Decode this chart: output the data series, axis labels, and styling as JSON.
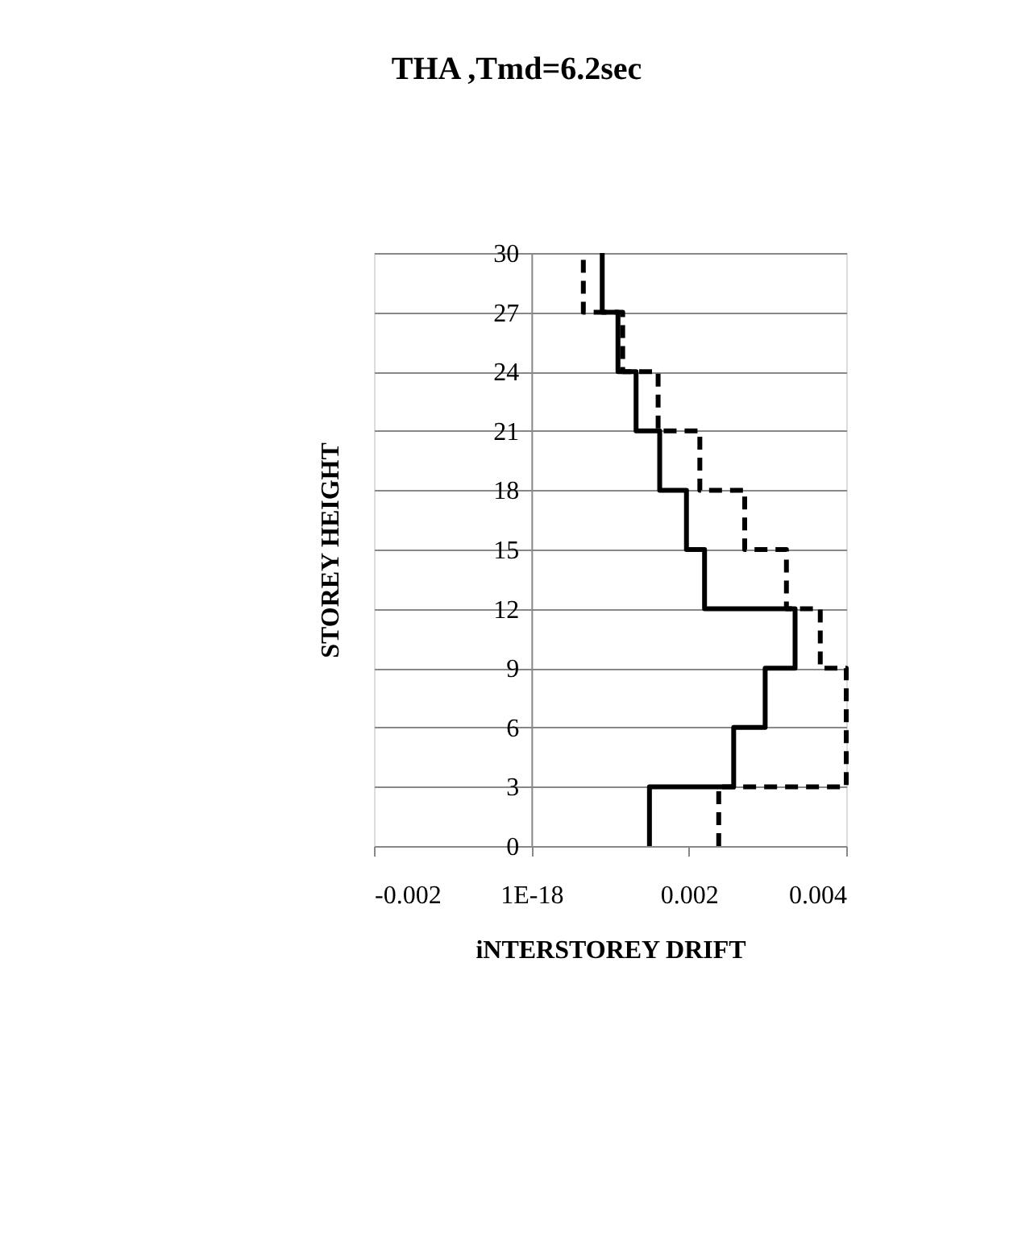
{
  "chart_data": {
    "type": "line",
    "title": "THA ,Tmd=6.2sec",
    "xlabel": "iNTERSTOREY DRIFT",
    "ylabel": "STOREY HEIGHT",
    "series": [
      {
        "color": "#000000",
        "line_style": "solid",
        "x": [
          0.0015,
          0.0015,
          0.00257,
          0.00257,
          0.00297,
          0.00297,
          0.00335,
          0.00335,
          0.0022,
          0.0022,
          0.00197,
          0.00197,
          0.00163,
          0.00163,
          0.00133,
          0.00133,
          0.0011,
          0.0011,
          0.0009,
          0.0009
        ],
        "values": [
          0,
          3,
          3,
          6,
          6,
          9,
          9,
          12,
          12,
          15,
          15,
          18,
          18,
          21,
          21,
          24,
          24,
          27,
          27,
          30
        ]
      },
      {
        "color": "#000000",
        "line_style": "dashed",
        "x": [
          0.00238,
          0.00238,
          0.004,
          0.004,
          0.004,
          0.004,
          0.00367,
          0.00367,
          0.00324,
          0.00324,
          0.00271,
          0.00271,
          0.00214,
          0.00214,
          0.00161,
          0.00161,
          0.00116,
          0.00116,
          0.00066,
          0.00066
        ],
        "values": [
          0,
          3,
          3,
          6,
          6,
          9,
          9,
          12,
          12,
          15,
          15,
          18,
          18,
          21,
          21,
          24,
          24,
          27,
          27,
          30
        ]
      }
    ],
    "xlim": [
      -0.002,
      0.004
    ],
    "xticks": [
      -0.002,
      {
        "value": 0,
        "label": "1E-18"
      },
      0.002,
      0.004
    ],
    "ylim": [
      0,
      30
    ],
    "yticks": [
      0,
      3,
      6,
      9,
      12,
      15,
      18,
      21,
      24,
      27,
      30
    ],
    "grid": "y",
    "marker": "none"
  }
}
